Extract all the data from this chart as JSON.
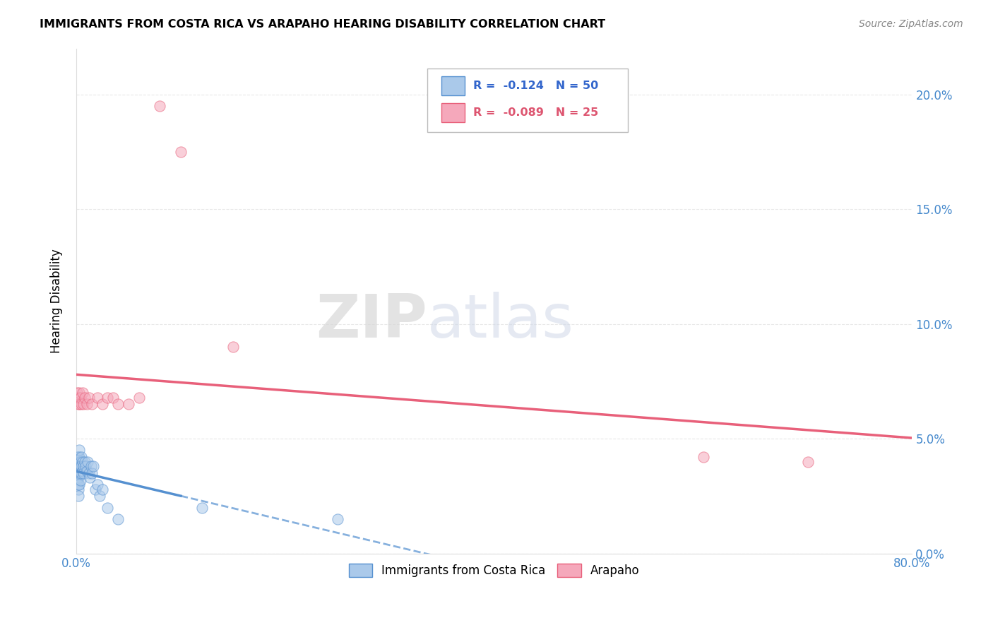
{
  "title": "IMMIGRANTS FROM COSTA RICA VS ARAPAHO HEARING DISABILITY CORRELATION CHART",
  "source": "Source: ZipAtlas.com",
  "ylabel_label": "Hearing Disability",
  "watermark_zip": "ZIP",
  "watermark_atlas": "atlas",
  "xlim": [
    0.0,
    0.8
  ],
  "ylim": [
    0.0,
    0.22
  ],
  "xticks": [
    0.0,
    0.1,
    0.2,
    0.3,
    0.4,
    0.5,
    0.6,
    0.7,
    0.8
  ],
  "yticks": [
    0.0,
    0.05,
    0.1,
    0.15,
    0.2
  ],
  "ytick_labels": [
    "0.0%",
    "5.0%",
    "10.0%",
    "15.0%",
    "20.0%"
  ],
  "xtick_labels": [
    "0.0%",
    "",
    "",
    "",
    "",
    "",
    "",
    "",
    "80.0%"
  ],
  "blue_color": "#aac9ea",
  "pink_color": "#f5a8bb",
  "blue_line_color": "#5590d0",
  "pink_line_color": "#e8607a",
  "legend_blue_r": "-0.124",
  "legend_blue_n": "50",
  "legend_pink_r": "-0.089",
  "legend_pink_n": "25",
  "legend_blue_label": "Immigrants from Costa Rica",
  "legend_pink_label": "Arapaho",
  "blue_x": [
    0.001,
    0.001,
    0.001,
    0.001,
    0.001,
    0.001,
    0.001,
    0.002,
    0.002,
    0.002,
    0.002,
    0.002,
    0.002,
    0.002,
    0.002,
    0.002,
    0.003,
    0.003,
    0.003,
    0.003,
    0.003,
    0.003,
    0.004,
    0.004,
    0.004,
    0.004,
    0.005,
    0.005,
    0.005,
    0.006,
    0.006,
    0.007,
    0.007,
    0.008,
    0.009,
    0.01,
    0.011,
    0.012,
    0.013,
    0.014,
    0.015,
    0.016,
    0.018,
    0.02,
    0.022,
    0.025,
    0.03,
    0.04,
    0.12,
    0.25
  ],
  "blue_y": [
    0.035,
    0.038,
    0.04,
    0.042,
    0.032,
    0.035,
    0.03,
    0.038,
    0.04,
    0.042,
    0.036,
    0.033,
    0.03,
    0.028,
    0.025,
    0.035,
    0.04,
    0.042,
    0.045,
    0.038,
    0.035,
    0.03,
    0.04,
    0.038,
    0.035,
    0.032,
    0.042,
    0.038,
    0.035,
    0.04,
    0.036,
    0.038,
    0.035,
    0.04,
    0.038,
    0.036,
    0.04,
    0.035,
    0.033,
    0.038,
    0.035,
    0.038,
    0.028,
    0.03,
    0.025,
    0.028,
    0.02,
    0.015,
    0.02,
    0.015
  ],
  "pink_x": [
    0.001,
    0.002,
    0.002,
    0.003,
    0.003,
    0.004,
    0.005,
    0.006,
    0.007,
    0.008,
    0.01,
    0.012,
    0.015,
    0.02,
    0.025,
    0.03,
    0.035,
    0.04,
    0.05,
    0.06,
    0.08,
    0.1,
    0.15,
    0.6,
    0.7
  ],
  "pink_y": [
    0.07,
    0.065,
    0.068,
    0.07,
    0.065,
    0.068,
    0.065,
    0.07,
    0.065,
    0.068,
    0.065,
    0.068,
    0.065,
    0.068,
    0.065,
    0.068,
    0.068,
    0.065,
    0.065,
    0.068,
    0.195,
    0.175,
    0.09,
    0.042,
    0.04
  ],
  "marker_size": 120,
  "alpha": 0.55,
  "grid_color": "#e8e8e8",
  "tick_color": "#4488cc",
  "background_color": "#ffffff",
  "blue_trend_start_x": 0.0,
  "blue_trend_end_solid_x": 0.1,
  "blue_trend_end_dashed_x": 0.8,
  "pink_trend_start_x": 0.0,
  "pink_trend_end_x": 0.8
}
